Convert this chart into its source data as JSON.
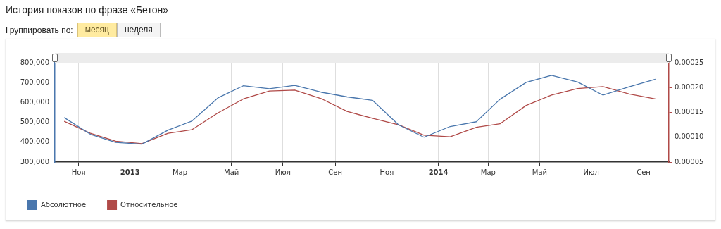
{
  "chart_data": {
    "type": "line",
    "title": "История показов по фразе «Бетон»",
    "annotations": [
      "Группировать по:",
      "месяц",
      "неделя"
    ],
    "x": [
      "2012-10-15",
      "2012-11-15",
      "2012-12-15",
      "2013-01-15",
      "2013-02-15",
      "2013-03-15",
      "2013-04-15",
      "2013-05-15",
      "2013-06-15",
      "2013-07-15",
      "2013-08-15",
      "2013-09-15",
      "2013-10-15",
      "2013-11-15",
      "2013-12-15",
      "2014-01-15",
      "2014-02-15",
      "2014-03-15",
      "2014-04-15",
      "2014-05-15",
      "2014-06-15",
      "2014-07-15",
      "2014-08-15",
      "2014-09-15"
    ],
    "series": [
      {
        "name": "Абсолютное",
        "color": "#4a77ad",
        "values": [
          524000,
          440000,
          399000,
          390000,
          461000,
          506000,
          623000,
          684000,
          669000,
          686000,
          652000,
          628000,
          611000,
          487000,
          425000,
          479000,
          503000,
          616000,
          701000,
          737000,
          703000,
          637000,
          679000,
          717000
        ]
      },
      {
        "name": "Относительное",
        "color": "#b04a48",
        "axis": "y2",
        "values": [
          0.000132,
          0.000108,
          9.2e-05,
          8.7e-05,
          0.000108,
          0.000115,
          0.000149,
          0.000177,
          0.000193,
          0.000195,
          0.000178,
          0.000152,
          0.000138,
          0.000125,
          0.000104,
          0.000101,
          0.00012,
          0.000127,
          0.000164,
          0.000185,
          0.000198,
          0.000202,
          0.000187,
          0.000177
        ]
      }
    ],
    "xlim": [
      "2012-10-04",
      "2014-10-01"
    ],
    "xticks": [
      {
        "value": "2012-11-01",
        "label": "Ноя"
      },
      {
        "value": "2013-01-01",
        "label": "2013"
      },
      {
        "value": "2013-03-01",
        "label": "Мар"
      },
      {
        "value": "2013-05-01",
        "label": "Май"
      },
      {
        "value": "2013-07-01",
        "label": "Июл"
      },
      {
        "value": "2013-09-01",
        "label": "Сен"
      },
      {
        "value": "2013-11-01",
        "label": "Ноя"
      },
      {
        "value": "2014-01-01",
        "label": "2014"
      },
      {
        "value": "2014-03-01",
        "label": "Мар"
      },
      {
        "value": "2014-05-01",
        "label": "Май"
      },
      {
        "value": "2014-07-01",
        "label": "Июл"
      },
      {
        "value": "2014-09-01",
        "label": "Сен"
      }
    ],
    "ylim": [
      300000,
      800000
    ],
    "yticks": [
      {
        "value": 300000,
        "label": "300,000"
      },
      {
        "value": 400000,
        "label": "400,000"
      },
      {
        "value": 500000,
        "label": "500,000"
      },
      {
        "value": 600000,
        "label": "600,000"
      },
      {
        "value": 700000,
        "label": "700,000"
      },
      {
        "value": 800000,
        "label": "800,000"
      }
    ],
    "y2lim": [
      5e-05,
      0.00025
    ],
    "y2ticks": [
      {
        "value": 5e-05,
        "label": "0.00005"
      },
      {
        "value": 0.0001,
        "label": "0.00010"
      },
      {
        "value": 0.00015,
        "label": "0.00015"
      },
      {
        "value": 0.0002,
        "label": "0.00020"
      },
      {
        "value": 0.00025,
        "label": "0.00025"
      }
    ],
    "grid": "x",
    "legend": "bottom left",
    "marker": "none",
    "line_style": "solid"
  }
}
